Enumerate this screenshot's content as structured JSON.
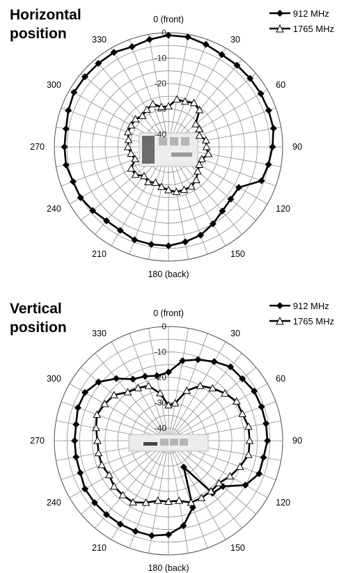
{
  "chart_data": [
    {
      "type": "polar",
      "title": "Horizontal position",
      "angle_labels": {
        "0": "0 (front)",
        "30": "30",
        "60": "60",
        "90": "90",
        "120": "120",
        "150": "150",
        "180": "180 (back)",
        "210": "210",
        "240": "240",
        "270": "270",
        "300": "300",
        "330": "330"
      },
      "radial_range": [
        -45,
        0
      ],
      "radial_ticks": [
        0,
        -10,
        -20,
        -30,
        -40
      ],
      "legend_position": "top-right",
      "angles": [
        0,
        10,
        20,
        30,
        40,
        50,
        60,
        70,
        80,
        90,
        100,
        110,
        120,
        130,
        140,
        150,
        160,
        170,
        180,
        190,
        200,
        210,
        220,
        230,
        240,
        250,
        260,
        270,
        280,
        290,
        300,
        310,
        320,
        330,
        340,
        350
      ],
      "series": [
        {
          "name": "912 MHz",
          "marker": "diamond",
          "values": [
            -1,
            -1,
            -2,
            -3,
            -3,
            -3,
            -3,
            -3,
            -3,
            -4,
            -5,
            -6,
            -13,
            -13,
            -12,
            -10,
            -8,
            -7,
            -6,
            -6,
            -6,
            -7,
            -7,
            -6,
            -5,
            -5,
            -4,
            -4,
            -4,
            -3,
            -2,
            -2,
            -2,
            -2,
            -3,
            -2
          ]
        },
        {
          "name": "1765 MHz",
          "marker": "triangle",
          "values": [
            -29,
            -26,
            -26,
            -25,
            -26,
            -31,
            -31,
            -32,
            -30,
            -30,
            -29,
            -31,
            -31,
            -30,
            -28,
            -27,
            -27,
            -27,
            -28,
            -29,
            -30,
            -29,
            -30,
            -28,
            -28,
            -31,
            -30,
            -29,
            -29,
            -28,
            -28,
            -28,
            -29,
            -28,
            -27,
            -29
          ]
        }
      ]
    },
    {
      "type": "polar",
      "title": "Vertical position",
      "angle_labels": {
        "0": "0 (front)",
        "30": "30",
        "60": "60",
        "90": "90",
        "120": "120",
        "150": "150",
        "180": "180 (back)",
        "210": "210",
        "240": "240",
        "270": "270",
        "300": "300",
        "330": "330"
      },
      "radial_range": [
        -45,
        0
      ],
      "radial_ticks": [
        0,
        -10,
        -20,
        -30,
        -40
      ],
      "legend_position": "top-right",
      "angles": [
        0,
        10,
        20,
        30,
        40,
        50,
        60,
        70,
        80,
        90,
        100,
        110,
        120,
        130,
        140,
        150,
        160,
        170,
        180,
        190,
        200,
        210,
        220,
        230,
        240,
        250,
        260,
        270,
        280,
        290,
        300,
        310,
        320,
        330,
        340,
        350
      ],
      "series": [
        {
          "name": "912 MHz",
          "marker": "diamond",
          "values": [
            -18,
            -13,
            -11,
            -9,
            -7,
            -7,
            -6,
            -6,
            -6,
            -6,
            -7,
            -7,
            -10,
            -17,
            -18,
            -33,
            -17,
            -11,
            -8,
            -7,
            -7,
            -7,
            -7,
            -7,
            -7,
            -8,
            -8,
            -8,
            -8,
            -7,
            -7,
            -9,
            -13,
            -17,
            -18,
            -19
          ]
        },
        {
          "name": "1765 MHz",
          "marker": "triangle",
          "values": [
            -31,
            -30,
            -24,
            -20,
            -18,
            -16,
            -14,
            -14,
            -13,
            -13,
            -13,
            -15,
            -17,
            -19,
            -19,
            -19,
            -19,
            -21,
            -21,
            -21,
            -19,
            -17,
            -17,
            -17,
            -18,
            -17,
            -17,
            -17,
            -16,
            -15,
            -16,
            -17,
            -20,
            -21,
            -22,
            -26
          ]
        }
      ]
    }
  ]
}
